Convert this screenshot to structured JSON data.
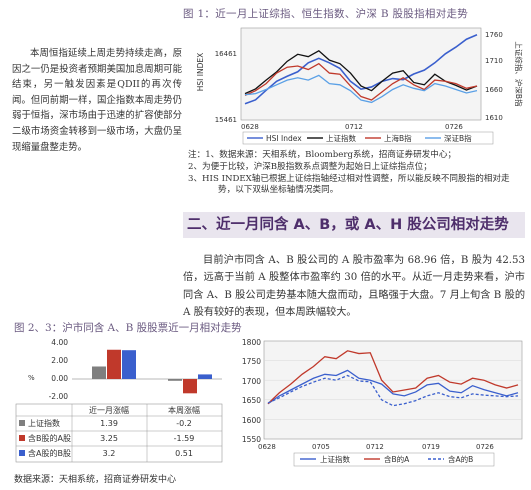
{
  "fig1": {
    "caption": "图 1：近一月上证综指、恒生指数、沪深 B 股股指相对走势",
    "left_axis_label": "HSI INDEX",
    "right_axis_label": "上证综指、沪深B指",
    "left_ticks": [
      "16461",
      "15461"
    ],
    "right_ticks": [
      "1760",
      "1710",
      "1660",
      "1610"
    ],
    "x_ticks": [
      "0628",
      "0712",
      "0726"
    ],
    "legend": [
      "HSI Index",
      "上证指数",
      "上海B指",
      "深证B指"
    ],
    "colors": {
      "hsi": "#3a5fcd",
      "sh": "#111111",
      "shb": "#c0392b",
      "szb": "#5aa0e6"
    }
  },
  "left_paragraph": "本周恒指延续上周走势持续走高，原因之一仍是投资者预期美国加息周期可能结束，另一触发因素是QDII的再次传闻。但同前期一样，国企指数本周走势仍弱于恒指，深市场由于迅速的扩容使部分二级市场资金转移到一级市场，大盘仍呈现缩量盘整走势。",
  "notes": [
    "注：1、数据来源：天相系统，Bloomberg系统，招商证券研发中心；",
    "2、为便于比较，沪深B股指数系点调整为起始日上证综指点位；",
    "3、HIS INDEX轴已根据上证综指轴经过相对性调整，所以能反映不同股指的相对走势，以下双纵坐标轴情况类同。"
  ],
  "section_title": "二、近一月同含 A、B，或 A、H 股公司相对走势",
  "body_paragraph": "目前沪市同含 A、B 股公司的 A 股市盈率为 68.96 倍，B 股为 42.53 倍，远高于当前 A 股整体市盈率约 30 倍的水平。从近一月走势来看，沪市同含 A、B 股公司走势基本随大盘而动，且略强于大盘。7 月上旬含 B 股的 A 股有较好的表现，但本周跌幅较大。",
  "fig2": {
    "caption": "图 2、3：沪市同含 A、B 股股票近一月相对走势",
    "ylabel": "%",
    "yticks": [
      "4.00",
      "2.00",
      "0.00",
      "-2.00"
    ],
    "col_headers": [
      "近一月涨幅",
      "本周涨幅"
    ],
    "rows": [
      {
        "label": "上证指数",
        "values": [
          "1.39",
          "-0.2"
        ]
      },
      {
        "label": "含B股的A股",
        "values": [
          "3.25",
          "-1.59"
        ]
      },
      {
        "label": "含A股的B股",
        "values": [
          "3.2",
          "0.51"
        ]
      }
    ],
    "colors": [
      "#7f7f7f",
      "#c0392b",
      "#3a5fcd"
    ]
  },
  "fig3": {
    "yticks": [
      "1800",
      "1750",
      "1700",
      "1650",
      "1600",
      "1550"
    ],
    "x_ticks": [
      "0628",
      "0705",
      "0712",
      "0719",
      "0726"
    ],
    "legend": [
      "上证指数",
      "含B的A",
      "含A的B"
    ],
    "colors": [
      "#3a5fcd",
      "#c0392b",
      "#3a5fcd"
    ]
  },
  "source": "数据来源：天相系统，招商证券研发中心",
  "chart_data": [
    {
      "type": "line",
      "title": "近一月上证综指、恒生指数、沪深B股股指相对走势",
      "x": [
        "0628",
        "0629",
        "0630",
        "0703",
        "0704",
        "0705",
        "0706",
        "0707",
        "0710",
        "0711",
        "0712",
        "0713",
        "0714",
        "0717",
        "0718",
        "0719",
        "0720",
        "0721",
        "0724",
        "0725",
        "0726",
        "0727",
        "0728"
      ],
      "series": [
        {
          "name": "HSI Index",
          "values": [
            15750,
            15820,
            15990,
            16150,
            16240,
            16320,
            16480,
            16560,
            16480,
            16380,
            16150,
            16010,
            16050,
            16150,
            16200,
            16180,
            16280,
            16350,
            16480,
            16640,
            16760,
            16900,
            16980
          ]
        },
        {
          "name": "上证指数",
          "values": [
            1655,
            1663,
            1678,
            1692,
            1710,
            1722,
            1718,
            1728,
            1712,
            1706,
            1690,
            1668,
            1660,
            1676,
            1690,
            1694,
            1674,
            1670,
            1688,
            1676,
            1669,
            1661,
            1668
          ]
        },
        {
          "name": "上海B指",
          "values": [
            1652,
            1660,
            1672,
            1690,
            1700,
            1702,
            1696,
            1706,
            1690,
            1688,
            1668,
            1650,
            1644,
            1658,
            1672,
            1682,
            1670,
            1662,
            1678,
            1676,
            1672,
            1664,
            1668
          ]
        },
        {
          "name": "深证B指",
          "values": [
            1653,
            1655,
            1662,
            1670,
            1678,
            1682,
            1678,
            1686,
            1672,
            1670,
            1660,
            1644,
            1640,
            1650,
            1662,
            1670,
            1664,
            1660,
            1672,
            1668,
            1662,
            1656,
            1660
          ]
        }
      ]
    },
    {
      "type": "bar",
      "categories": [
        "近一月涨幅",
        "本周涨幅"
      ],
      "series": [
        {
          "name": "上证指数",
          "values": [
            1.39,
            -0.2
          ]
        },
        {
          "name": "含B股的A股",
          "values": [
            3.25,
            -1.59
          ]
        },
        {
          "name": "含A股的B股",
          "values": [
            3.2,
            0.51
          ]
        }
      ],
      "ylim": [
        -2,
        4
      ],
      "ylabel": "%"
    },
    {
      "type": "line",
      "x": [
        "0628",
        "0629",
        "0630",
        "0703",
        "0704",
        "0705",
        "0706",
        "0707",
        "0710",
        "0711",
        "0712",
        "0713",
        "0714",
        "0717",
        "0718",
        "0719",
        "0720",
        "0721",
        "0724",
        "0725",
        "0726",
        "0727",
        "0728"
      ],
      "ylim": [
        1550,
        1800
      ],
      "series": [
        {
          "name": "上证指数",
          "values": [
            1640,
            1660,
            1675,
            1690,
            1705,
            1715,
            1712,
            1725,
            1705,
            1700,
            1690,
            1665,
            1660,
            1670,
            1688,
            1692,
            1672,
            1668,
            1686,
            1676,
            1668,
            1660,
            1668
          ]
        },
        {
          "name": "含B的A",
          "values": [
            1640,
            1668,
            1690,
            1715,
            1735,
            1760,
            1755,
            1775,
            1768,
            1770,
            1700,
            1670,
            1675,
            1680,
            1705,
            1712,
            1695,
            1690,
            1705,
            1700,
            1688,
            1680,
            1688
          ]
        },
        {
          "name": "含A的B",
          "values": [
            1642,
            1655,
            1670,
            1684,
            1695,
            1705,
            1700,
            1712,
            1698,
            1696,
            1650,
            1635,
            1640,
            1648,
            1660,
            1668,
            1658,
            1655,
            1665,
            1662,
            1660,
            1658,
            1660
          ]
        }
      ]
    }
  ]
}
